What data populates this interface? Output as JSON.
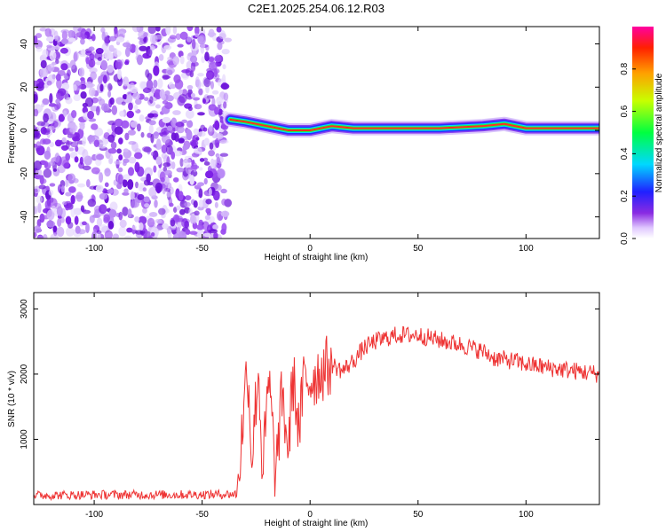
{
  "title": "C2E1.2025.254.06.12.R03",
  "chart_data": [
    {
      "type": "heatmap",
      "xlabel": "Height of straight line (km)",
      "ylabel": "Frequency (Hz)",
      "xlim": [
        -128,
        134
      ],
      "ylim": [
        -50,
        48
      ],
      "xticks": [
        -100,
        -50,
        0,
        50,
        100
      ],
      "yticks": [
        -40,
        -20,
        0,
        20,
        40
      ],
      "colorbar": {
        "label": "Normalized spectral amplitude",
        "range": [
          0,
          1
        ],
        "ticks": [
          0.0,
          0.2,
          0.4,
          0.6,
          0.8
        ]
      },
      "noise_region_x": [
        -128,
        -38
      ],
      "signal_trace": {
        "x": [
          -37,
          -30,
          -20,
          -15,
          -10,
          -5,
          0,
          10,
          20,
          40,
          60,
          80,
          90,
          100,
          110,
          120,
          134
        ],
        "freq": [
          5,
          4,
          2,
          1,
          0,
          0,
          0,
          2,
          1,
          1,
          1,
          2,
          3,
          1,
          1,
          1,
          1
        ]
      }
    },
    {
      "type": "line",
      "xlabel": "Height of straight line (km)",
      "ylabel": "SNR (10 * v/v)",
      "xlim": [
        -128,
        134
      ],
      "ylim": [
        0,
        3250
      ],
      "xticks": [
        -100,
        -50,
        0,
        50,
        100
      ],
      "yticks": [
        1000,
        2000,
        3000
      ],
      "series": [
        {
          "color": "#ee3333",
          "x": [
            -128,
            -100,
            -60,
            -34,
            -32,
            -29,
            -27,
            -24,
            -22,
            -19,
            -16,
            -13,
            -10,
            -8,
            -5,
            -3,
            0,
            5,
            10,
            15,
            20,
            25,
            30,
            35,
            40,
            50,
            60,
            70,
            80,
            85,
            90,
            95,
            100,
            110,
            120,
            134
          ],
          "y": [
            140,
            150,
            150,
            160,
            900,
            2200,
            700,
            2100,
            500,
            1900,
            400,
            1700,
            800,
            2000,
            1100,
            1900,
            1900,
            2050,
            2150,
            2050,
            2200,
            2400,
            2500,
            2550,
            2600,
            2600,
            2520,
            2450,
            2350,
            2250,
            2220,
            2200,
            2150,
            2100,
            2060,
            2000
          ]
        }
      ]
    }
  ]
}
